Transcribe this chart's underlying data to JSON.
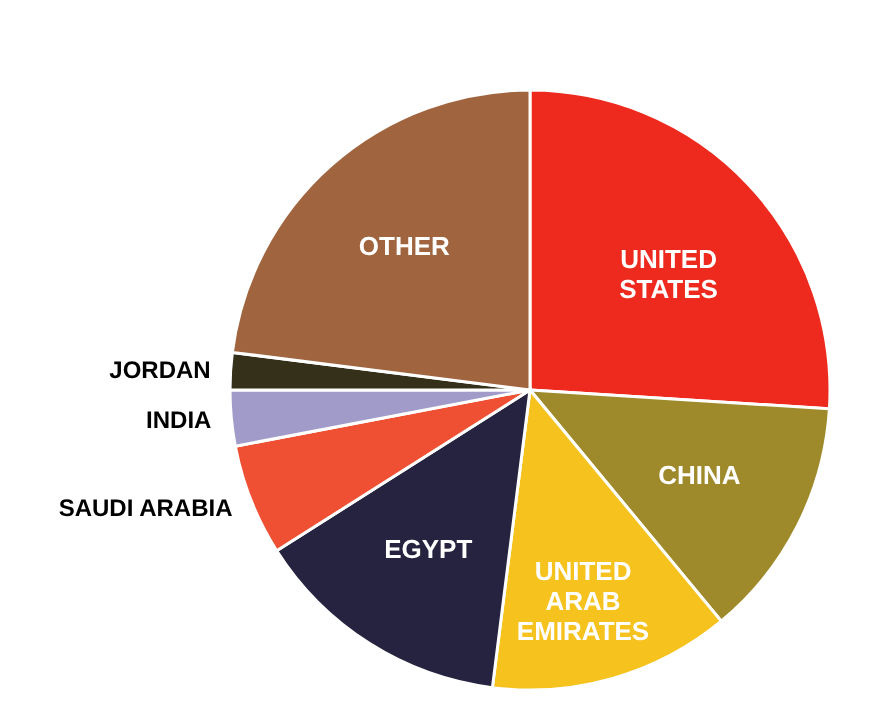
{
  "chart_data": {
    "type": "pie",
    "categories": [
      "UNITED STATES",
      "CHINA",
      "UNITED ARAB EMIRATES",
      "EGYPT",
      "SAUDI ARABIA",
      "INDIA",
      "JORDAN",
      "OTHER"
    ],
    "values": [
      26,
      13,
      13,
      14,
      6,
      3,
      2,
      23
    ],
    "colors": [
      "#ee2a1e",
      "#9e8a2a",
      "#f5c21e",
      "#25233f",
      "#ef5034",
      "#a09bc8",
      "#34301a",
      "#a0643e"
    ],
    "legend": false
  }
}
